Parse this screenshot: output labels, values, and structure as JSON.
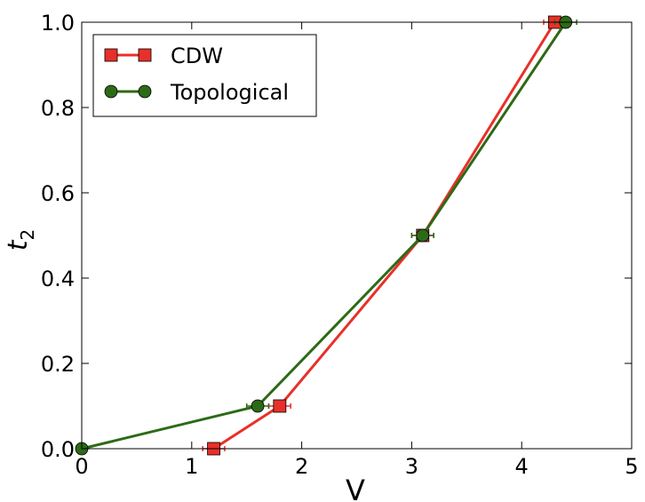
{
  "chart_data": {
    "type": "line",
    "xlabel": "V",
    "ylabel": "t",
    "ylabel_sub": "2",
    "xlim": [
      0,
      5
    ],
    "ylim": [
      0,
      1.0
    ],
    "xticks": [
      "0",
      "1",
      "2",
      "3",
      "4",
      "5"
    ],
    "yticks": [
      "0.0",
      "0.2",
      "0.4",
      "0.6",
      "0.8",
      "1.0"
    ],
    "grid": false,
    "legend_position": "top-left",
    "series": [
      {
        "name": "CDW",
        "marker": "square",
        "color": "#e8302a",
        "points": [
          {
            "x": 1.2,
            "y": 0.0,
            "xerr": 0.1
          },
          {
            "x": 1.8,
            "y": 0.1,
            "xerr": 0.1
          },
          {
            "x": 3.1,
            "y": 0.5,
            "xerr": 0.1
          },
          {
            "x": 4.3,
            "y": 1.0,
            "xerr": 0.1
          }
        ]
      },
      {
        "name": "Topological",
        "marker": "circle",
        "color": "#2d6a16",
        "points": [
          {
            "x": 0.0,
            "y": 0.0,
            "xerr": 0.0
          },
          {
            "x": 1.6,
            "y": 0.1,
            "xerr": 0.1
          },
          {
            "x": 3.1,
            "y": 0.5,
            "xerr": 0.1
          },
          {
            "x": 4.4,
            "y": 1.0,
            "xerr": 0.1
          }
        ]
      }
    ]
  }
}
